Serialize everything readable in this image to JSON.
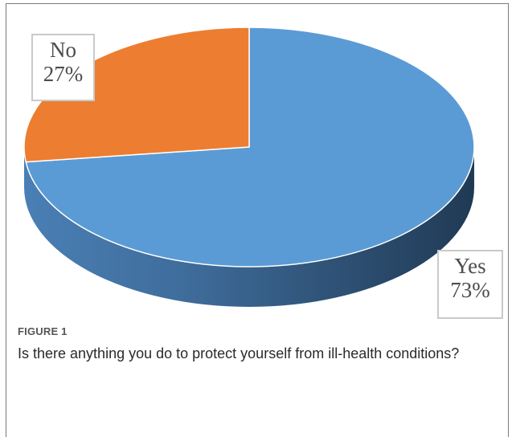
{
  "chart_data": {
    "type": "pie",
    "style": "3d",
    "slices": [
      {
        "label": "Yes",
        "value": 73,
        "display": "73%",
        "color": "#5b9bd5"
      },
      {
        "label": "No",
        "value": 27,
        "display": "27%",
        "color": "#ed7d31"
      }
    ]
  },
  "caption": {
    "figure_number": "FIGURE 1",
    "text": "Is there anything you do to protect yourself from ill-health conditions?"
  }
}
